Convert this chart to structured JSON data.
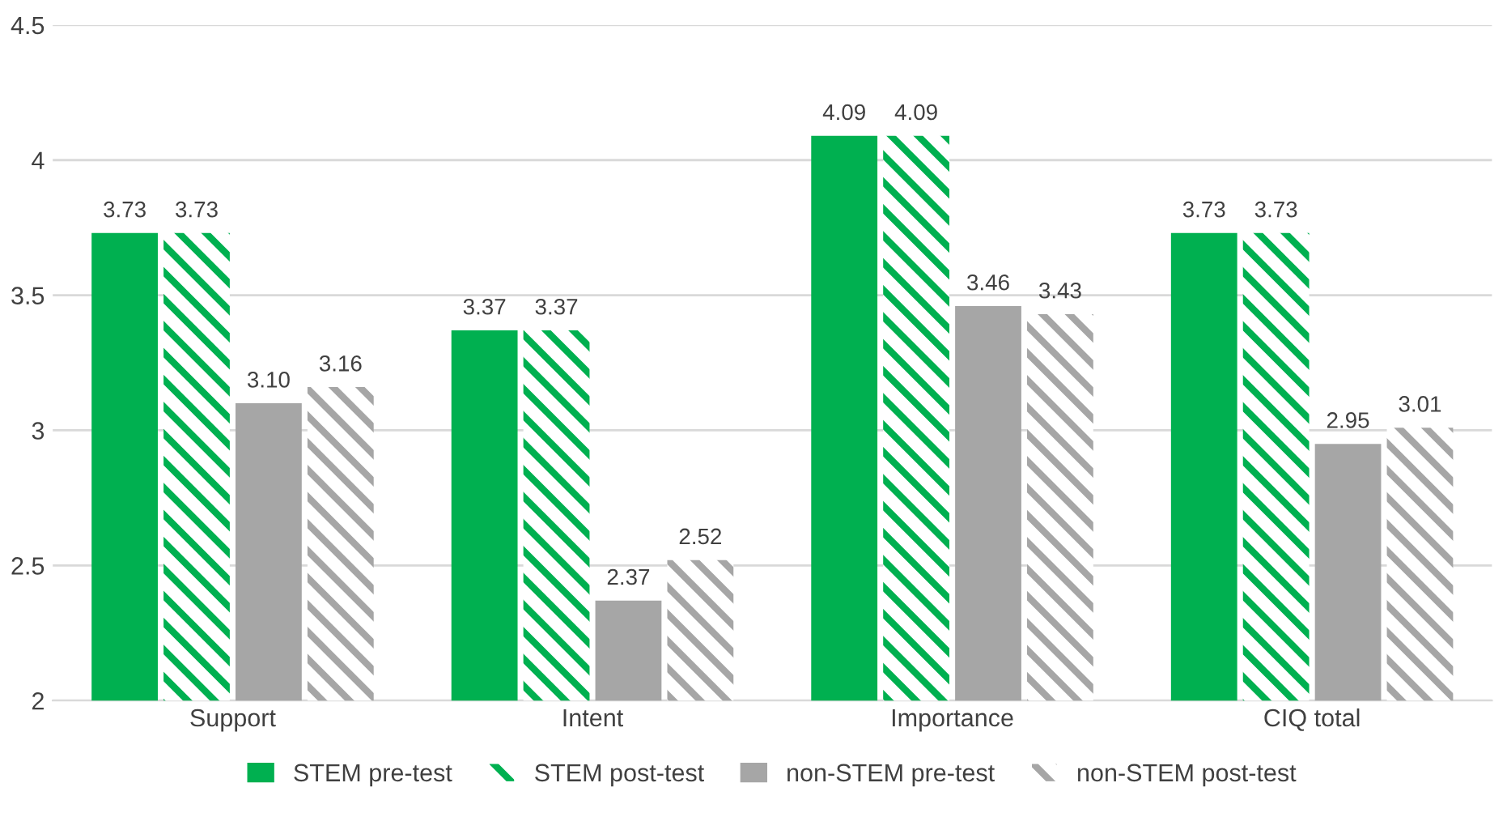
{
  "chart_data": {
    "type": "bar",
    "categories": [
      "Support",
      "Intent",
      "Importance",
      "CIQ total"
    ],
    "series": [
      {
        "name": "STEM pre-test",
        "color": "#00b050",
        "values": [
          3.73,
          3.37,
          4.09,
          3.73
        ],
        "value_labels": [
          "3.73",
          "3.37",
          "4.09",
          "3.73"
        ]
      },
      {
        "name": "STEM post-test",
        "color": "#00b050",
        "line_style": "dashed",
        "values": [
          3.73,
          3.37,
          4.09,
          3.73
        ],
        "value_labels": [
          "3.73",
          "3.37",
          "4.09",
          "3.73"
        ]
      },
      {
        "name": "non-STEM pre-test",
        "color": "#a6a6a6",
        "values": [
          3.1,
          2.37,
          3.46,
          2.95
        ],
        "value_labels": [
          "3.10",
          "2.37",
          "3.46",
          "2.95"
        ]
      },
      {
        "name": "non-STEM post-test",
        "color": "#a6a6a6",
        "line_style": "dashed",
        "values": [
          3.16,
          2.52,
          3.43,
          3.01
        ],
        "value_labels": [
          "3.16",
          "2.52",
          "3.43",
          "3.01"
        ]
      }
    ],
    "ylim": [
      2,
      4.5
    ],
    "yticks": [
      2,
      2.5,
      3,
      3.5,
      4,
      4.5
    ],
    "grid": "y",
    "legend": "bottom"
  }
}
